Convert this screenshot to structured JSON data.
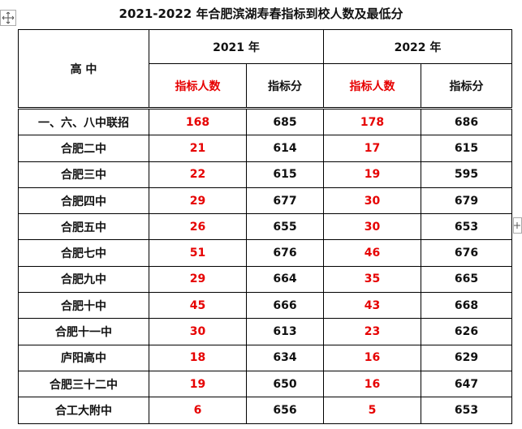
{
  "title": "2021-2022 年合肥滨湖寿春指标到校人数及最低分",
  "table": {
    "header": {
      "school": "高 中",
      "years": [
        "2021 年",
        "2022 年"
      ],
      "columns": [
        "指标人数",
        "指标分",
        "指标人数",
        "指标分"
      ]
    },
    "rows": [
      [
        "一、六、八中联招",
        168,
        685,
        178,
        686
      ],
      [
        "合肥二中",
        21,
        614,
        17,
        615
      ],
      [
        "合肥三中",
        22,
        615,
        19,
        595
      ],
      [
        "合肥四中",
        29,
        677,
        30,
        679
      ],
      [
        "合肥五中",
        26,
        655,
        30,
        653
      ],
      [
        "合肥七中",
        51,
        676,
        46,
        676
      ],
      [
        "合肥九中",
        29,
        664,
        35,
        665
      ],
      [
        "合肥十中",
        45,
        666,
        43,
        668
      ],
      [
        "合肥十一中",
        30,
        613,
        23,
        626
      ],
      [
        "庐阳高中",
        18,
        634,
        16,
        629
      ],
      [
        "合肥三十二中",
        19,
        650,
        16,
        647
      ],
      [
        "合工大附中",
        6,
        656,
        5,
        653
      ]
    ]
  }
}
